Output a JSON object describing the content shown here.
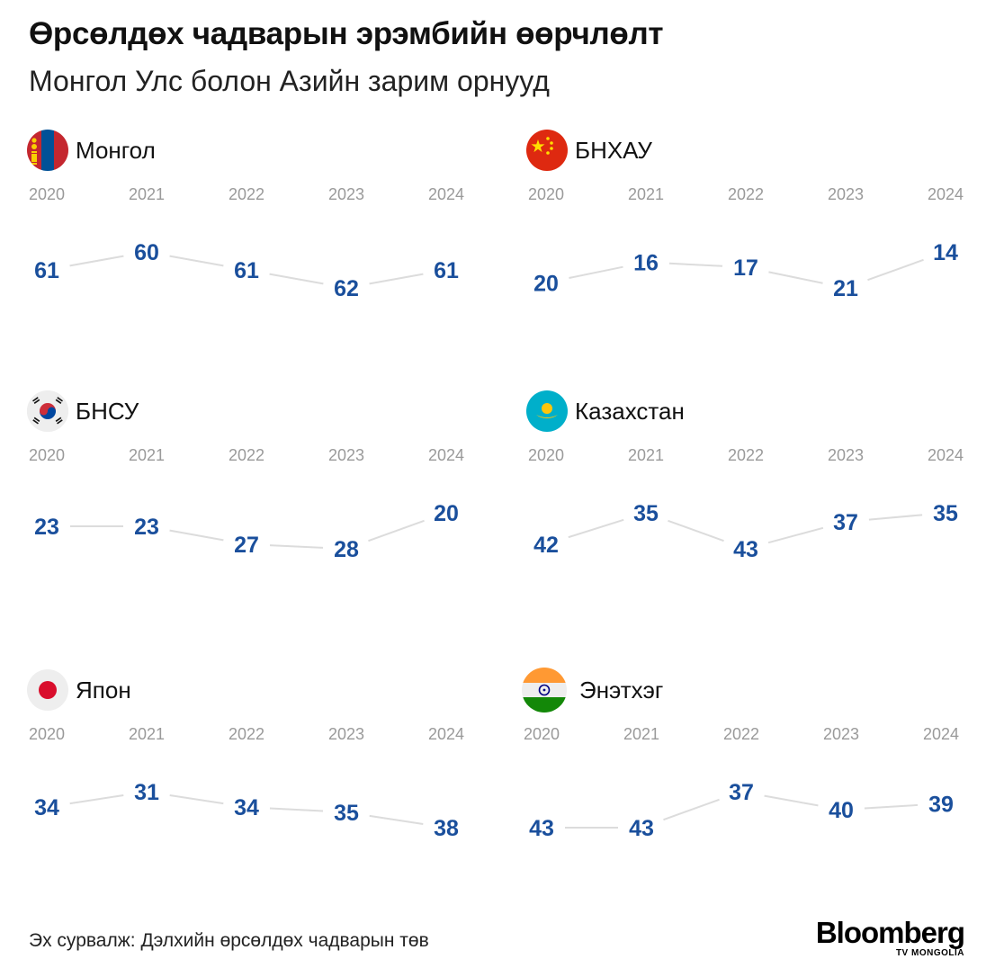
{
  "header": {
    "title": "Өрсөлдөх чадварын эрэмбийн өөрчлөлт",
    "subtitle": "Монгол Улс болон Азийн зарим орнууд"
  },
  "footer": {
    "source": "Эх сурвалж: Дэлхийн өрсөлдөх чадварын төв",
    "brand": "Bloomberg",
    "brand_sub": "TV MONGOLIA"
  },
  "colors": {
    "value": "#1a4f9c",
    "line": "#dcdcdc",
    "year": "#9a9a9a"
  },
  "chart_data": {
    "type": "line",
    "x": [
      "2020",
      "2021",
      "2022",
      "2023",
      "2024"
    ],
    "y_direction": "inverted",
    "series": [
      {
        "name": "Монгол",
        "flag": "mongolia-flag-icon",
        "values": [
          61,
          60,
          61,
          62,
          61
        ]
      },
      {
        "name": "БНХАУ",
        "flag": "china-flag-icon",
        "values": [
          20,
          16,
          17,
          21,
          14
        ]
      },
      {
        "name": "БНСУ",
        "flag": "south-korea-flag-icon",
        "values": [
          23,
          23,
          27,
          28,
          20
        ]
      },
      {
        "name": "Казахстан",
        "flag": "kazakhstan-flag-icon",
        "values": [
          42,
          35,
          43,
          37,
          35
        ]
      },
      {
        "name": "Япон",
        "flag": "japan-flag-icon",
        "values": [
          34,
          31,
          34,
          35,
          38
        ]
      },
      {
        "name": "Энэтхэг",
        "flag": "india-flag-icon",
        "values": [
          43,
          43,
          37,
          40,
          39
        ]
      }
    ]
  }
}
